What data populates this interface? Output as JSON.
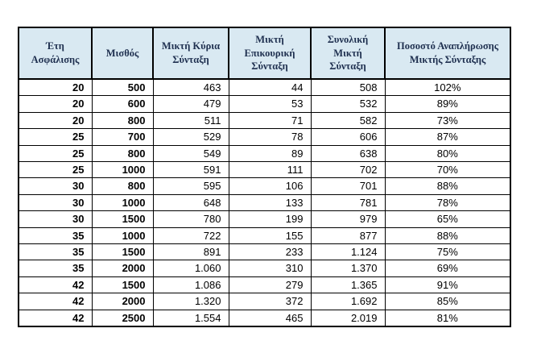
{
  "colors": {
    "header_bg": "#d9e9f2",
    "header_text": "#1e2f4f",
    "border": "#000000"
  },
  "table": {
    "headers": [
      "Έτη\nΑσφάλισης",
      "Μισθός",
      "Μικτή Κύρια\nΣύνταξη",
      "Μικτή\nΕπικουρική\nΣύνταξη",
      "Συνολική\nΜικτή\nΣύνταξη",
      "Ποσοστό Αναπλήρωσης\nΜικτής Σύνταξης"
    ],
    "rows": [
      [
        "20",
        "500",
        "463",
        "44",
        "508",
        "102%"
      ],
      [
        "20",
        "600",
        "479",
        "53",
        "532",
        "89%"
      ],
      [
        "20",
        "800",
        "511",
        "71",
        "582",
        "73%"
      ],
      [
        "25",
        "700",
        "529",
        "78",
        "606",
        "87%"
      ],
      [
        "25",
        "800",
        "549",
        "89",
        "638",
        "80%"
      ],
      [
        "25",
        "1000",
        "591",
        "111",
        "702",
        "70%"
      ],
      [
        "30",
        "800",
        "595",
        "106",
        "701",
        "88%"
      ],
      [
        "30",
        "1000",
        "648",
        "133",
        "781",
        "78%"
      ],
      [
        "30",
        "1500",
        "780",
        "199",
        "979",
        "65%"
      ],
      [
        "35",
        "1000",
        "722",
        "155",
        "877",
        "88%"
      ],
      [
        "35",
        "1500",
        "891",
        "233",
        "1.124",
        "75%"
      ],
      [
        "35",
        "2000",
        "1.060",
        "310",
        "1.370",
        "69%"
      ],
      [
        "42",
        "1500",
        "1.086",
        "279",
        "1.365",
        "91%"
      ],
      [
        "42",
        "2000",
        "1.320",
        "372",
        "1.692",
        "85%"
      ],
      [
        "42",
        "2500",
        "1.554",
        "465",
        "2.019",
        "81%"
      ]
    ]
  }
}
